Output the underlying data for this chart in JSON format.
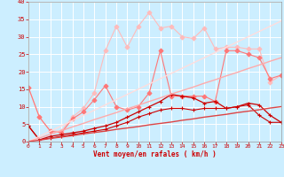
{
  "xlabel": "Vent moyen/en rafales ( km/h )",
  "x": [
    0,
    1,
    2,
    3,
    4,
    5,
    6,
    7,
    8,
    9,
    10,
    11,
    12,
    13,
    14,
    15,
    16,
    17,
    18,
    19,
    20,
    21,
    22,
    23
  ],
  "series": [
    {
      "name": "line_lightest_zigzag",
      "color": "#ffbbbb",
      "linewidth": 0.8,
      "marker": "D",
      "markersize": 2.5,
      "y": [
        15.5,
        7.0,
        3.0,
        3.0,
        7.0,
        9.5,
        14.0,
        26.0,
        33.0,
        27.0,
        33.0,
        37.0,
        32.5,
        33.0,
        30.0,
        29.5,
        32.5,
        26.5,
        27.0,
        27.0,
        26.5,
        26.5,
        17.0,
        19.0
      ]
    },
    {
      "name": "line_medium_zigzag",
      "color": "#ff7777",
      "linewidth": 0.8,
      "marker": "D",
      "markersize": 2.5,
      "y": [
        15.5,
        7.0,
        3.0,
        2.5,
        6.5,
        8.5,
        12.0,
        16.0,
        10.0,
        9.0,
        10.0,
        14.0,
        26.0,
        13.0,
        13.0,
        13.0,
        13.0,
        11.5,
        26.0,
        26.0,
        25.0,
        24.0,
        18.0,
        19.0
      ]
    },
    {
      "name": "line_darkred_zigzag2",
      "color": "#cc0000",
      "linewidth": 0.9,
      "marker": "+",
      "markersize": 3.5,
      "y": [
        4.5,
        0.5,
        1.5,
        2.0,
        2.5,
        3.0,
        3.8,
        4.5,
        5.5,
        7.0,
        8.5,
        10.0,
        11.5,
        13.5,
        13.0,
        12.5,
        11.0,
        11.5,
        9.5,
        10.0,
        11.0,
        10.5,
        7.5,
        5.5
      ]
    },
    {
      "name": "line_darkred_zigzag1",
      "color": "#cc0000",
      "linewidth": 0.8,
      "marker": "+",
      "markersize": 3.0,
      "y": [
        4.5,
        0.5,
        1.0,
        1.5,
        2.0,
        2.5,
        3.0,
        3.5,
        4.5,
        5.5,
        7.0,
        8.0,
        9.0,
        9.5,
        9.5,
        9.0,
        9.5,
        9.5,
        9.5,
        10.0,
        10.5,
        7.5,
        5.5,
        5.5
      ]
    },
    {
      "name": "line_straight_lightest",
      "color": "#ffdddd",
      "linewidth": 1.0,
      "marker": null,
      "y": [
        0.0,
        1.5,
        3.0,
        4.5,
        6.0,
        7.5,
        9.0,
        10.5,
        12.0,
        13.5,
        15.0,
        16.5,
        18.0,
        19.5,
        21.0,
        22.5,
        24.0,
        25.5,
        27.0,
        28.5,
        30.0,
        31.5,
        33.0,
        34.5
      ]
    },
    {
      "name": "line_straight_medium",
      "color": "#ffaaaa",
      "linewidth": 1.0,
      "marker": null,
      "y": [
        0.0,
        1.0,
        2.1,
        3.1,
        4.2,
        5.2,
        6.3,
        7.3,
        8.3,
        9.4,
        10.4,
        11.5,
        12.5,
        13.6,
        14.6,
        15.6,
        16.7,
        17.7,
        18.8,
        19.8,
        20.9,
        21.9,
        23.0,
        24.0
      ]
    },
    {
      "name": "line_straight_dark",
      "color": "#dd4444",
      "linewidth": 1.0,
      "marker": null,
      "y": [
        0.0,
        0.4,
        0.9,
        1.3,
        1.7,
        2.2,
        2.6,
        3.0,
        3.5,
        3.9,
        4.3,
        4.8,
        5.2,
        5.6,
        6.1,
        6.5,
        7.0,
        7.4,
        7.8,
        8.3,
        8.7,
        9.1,
        9.6,
        10.0
      ]
    }
  ],
  "xlim": [
    0,
    23
  ],
  "ylim": [
    0,
    40
  ],
  "yticks": [
    0,
    5,
    10,
    15,
    20,
    25,
    30,
    35,
    40
  ],
  "xticks": [
    0,
    1,
    2,
    3,
    4,
    5,
    6,
    7,
    8,
    9,
    10,
    11,
    12,
    13,
    14,
    15,
    16,
    17,
    18,
    19,
    20,
    21,
    22,
    23
  ],
  "bg_color": "#cceeff",
  "grid_color": "#ffffff",
  "tick_color": "#cc0000",
  "axis_label_color": "#cc0000"
}
